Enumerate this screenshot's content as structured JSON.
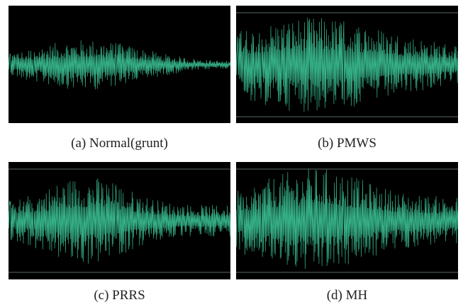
{
  "figure": {
    "panels": [
      {
        "caption": "(a) Normal(grunt)"
      },
      {
        "caption": "(b) PMWS"
      },
      {
        "caption": "(c) PRRS"
      },
      {
        "caption": "(d) MH"
      }
    ]
  }
}
